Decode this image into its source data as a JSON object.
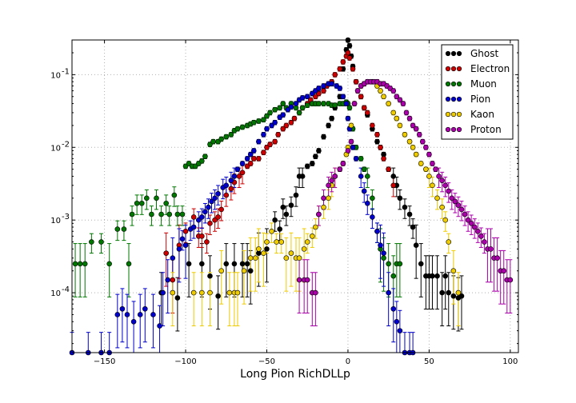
{
  "chart_data": {
    "type": "scatter",
    "title": "",
    "xlabel": "Long Pion RichDLLp",
    "ylabel": "",
    "xlim": [
      -170,
      105
    ],
    "ylim": [
      1.5e-05,
      0.3
    ],
    "yscale": "log",
    "grid": true,
    "legend_position": "top-right",
    "x_ticks": [
      -150,
      -100,
      -50,
      0,
      50,
      100
    ],
    "x_tick_labels": [
      "−150",
      "−100",
      "−50",
      "0",
      "50",
      "100"
    ],
    "y_ticks": [
      0.0001,
      0.001,
      0.01,
      0.1
    ],
    "y_tick_mantissa": [
      "10",
      "10",
      "10",
      "10"
    ],
    "y_tick_exponents": [
      "-4",
      "-3",
      "-2",
      "-1"
    ],
    "series": [
      {
        "name": "Ghost",
        "color": "#000000",
        "x": [
          -115,
          -105,
          -98,
          -90,
          -85,
          -80,
          -75,
          -70,
          -65,
          -62,
          -60,
          -55,
          -50,
          -45,
          -42,
          -40,
          -38,
          -35,
          -32,
          -30,
          -28,
          -25,
          -22,
          -20,
          -18,
          -15,
          -12,
          -10,
          -8,
          -5,
          -3,
          -1,
          0,
          1,
          2,
          3,
          5,
          8,
          10,
          12,
          15,
          18,
          20,
          22,
          25,
          28,
          30,
          32,
          35,
          38,
          40,
          42,
          45,
          48,
          50,
          52,
          55,
          58,
          60,
          62,
          65,
          68,
          70
        ],
        "y": [
          0.0001,
          8.5e-05,
          0.00025,
          0.00025,
          0.00017,
          9e-05,
          0.00025,
          0.00025,
          0.00025,
          0.00025,
          0.0002,
          0.00035,
          0.0004,
          0.001,
          0.00075,
          0.0015,
          0.0012,
          0.0016,
          0.0022,
          0.004,
          0.004,
          0.0055,
          0.006,
          0.0075,
          0.009,
          0.014,
          0.02,
          0.025,
          0.035,
          0.05,
          0.12,
          0.22,
          0.3,
          0.25,
          0.18,
          0.13,
          0.08,
          0.05,
          0.035,
          0.028,
          0.018,
          0.012,
          0.01,
          0.008,
          0.005,
          0.004,
          0.003,
          0.002,
          0.0015,
          0.0012,
          0.0008,
          0.00045,
          0.00025,
          0.00017,
          0.00017,
          0.00017,
          0.00017,
          0.0001,
          0.00017,
          0.0001,
          9e-05,
          8.5e-05,
          9e-05
        ]
      },
      {
        "name": "Electron",
        "color": "#cc0000",
        "x": [
          -112,
          -108,
          -104,
          -100,
          -95,
          -92,
          -90,
          -87,
          -85,
          -82,
          -80,
          -78,
          -75,
          -72,
          -70,
          -67,
          -65,
          -62,
          -60,
          -58,
          -55,
          -52,
          -50,
          -48,
          -45,
          -43,
          -40,
          -38,
          -35,
          -33,
          -30,
          -28,
          -25,
          -23,
          -20,
          -18,
          -15,
          -13,
          -10,
          -8,
          -5,
          -3,
          -1,
          0,
          1,
          3,
          5,
          8,
          10,
          12,
          15,
          18,
          20,
          22,
          25,
          28
        ],
        "y": [
          0.00035,
          0.00015,
          0.00045,
          0.0007,
          0.0011,
          0.0006,
          0.0006,
          0.0005,
          0.0009,
          0.001,
          0.0011,
          0.0014,
          0.0022,
          0.0027,
          0.0033,
          0.004,
          0.0045,
          0.0055,
          0.006,
          0.007,
          0.007,
          0.0085,
          0.01,
          0.011,
          0.012,
          0.015,
          0.018,
          0.02,
          0.022,
          0.025,
          0.03,
          0.035,
          0.04,
          0.045,
          0.05,
          0.055,
          0.06,
          0.07,
          0.08,
          0.1,
          0.12,
          0.15,
          0.18,
          0.2,
          0.17,
          0.12,
          0.08,
          0.05,
          0.035,
          0.03,
          0.02,
          0.015,
          0.01,
          0.007,
          0.005,
          0.003
        ]
      },
      {
        "name": "Muon",
        "color": "#007700",
        "x": [
          -168,
          -165,
          -162,
          -158,
          -152,
          -147,
          -142,
          -138,
          -135,
          -133,
          -130,
          -127,
          -124,
          -121,
          -118,
          -115,
          -112,
          -110,
          -107,
          -105,
          -102,
          -100,
          -98,
          -96,
          -94,
          -92,
          -90,
          -88,
          -85,
          -83,
          -80,
          -78,
          -75,
          -72,
          -70,
          -68,
          -65,
          -62,
          -60,
          -58,
          -55,
          -52,
          -50,
          -48,
          -45,
          -42,
          -40,
          -38,
          -35,
          -32,
          -30,
          -28,
          -25,
          -22,
          -20,
          -18,
          -15,
          -12,
          -10,
          -8,
          -5,
          -3,
          -1,
          0,
          1,
          3,
          5,
          8,
          10,
          12,
          15,
          18,
          20,
          22,
          25,
          28,
          30,
          32
        ],
        "y": [
          0.00025,
          0.00025,
          0.00025,
          0.0005,
          0.0005,
          0.00025,
          0.00075,
          0.00075,
          0.00025,
          0.0012,
          0.0017,
          0.0017,
          0.002,
          0.0012,
          0.002,
          0.0012,
          0.0017,
          0.0012,
          0.0022,
          0.0012,
          0.0012,
          0.0055,
          0.006,
          0.0055,
          0.0055,
          0.006,
          0.0065,
          0.0075,
          0.011,
          0.012,
          0.012,
          0.013,
          0.014,
          0.015,
          0.017,
          0.018,
          0.019,
          0.02,
          0.021,
          0.022,
          0.023,
          0.024,
          0.027,
          0.03,
          0.033,
          0.035,
          0.04,
          0.035,
          0.04,
          0.035,
          0.03,
          0.035,
          0.038,
          0.04,
          0.04,
          0.04,
          0.04,
          0.04,
          0.038,
          0.038,
          0.04,
          0.04,
          0.042,
          0.04,
          0.035,
          0.018,
          0.01,
          0.007,
          0.005,
          0.004,
          0.002,
          0.0007,
          0.0004,
          0.0003,
          0.00025,
          0.00017,
          0.00025,
          0.00025
        ]
      },
      {
        "name": "Pion",
        "color": "#0000cc",
        "x": [
          -170,
          -160,
          -152,
          -147,
          -142,
          -139,
          -136,
          -132,
          -128,
          -125,
          -120,
          -116,
          -114,
          -111,
          -108,
          -104,
          -102,
          -100,
          -97,
          -95,
          -92,
          -90,
          -88,
          -86,
          -84,
          -82,
          -80,
          -77,
          -75,
          -72,
          -70,
          -68,
          -65,
          -62,
          -60,
          -58,
          -55,
          -52,
          -50,
          -47,
          -45,
          -42,
          -40,
          -37,
          -35,
          -32,
          -30,
          -28,
          -25,
          -22,
          -20,
          -18,
          -15,
          -12,
          -10,
          -7,
          -5,
          -3,
          -1,
          0,
          1,
          3,
          5,
          8,
          10,
          12,
          15,
          18,
          20,
          22,
          25,
          28,
          30,
          32,
          35,
          38,
          40
        ],
        "y": [
          1.5e-05,
          1.5e-05,
          1.5e-05,
          1.5e-05,
          5e-05,
          6e-05,
          5e-05,
          4e-05,
          5e-05,
          6e-05,
          5e-05,
          3.5e-05,
          0.0001,
          0.00015,
          0.0003,
          0.0004,
          0.00055,
          0.00045,
          0.00075,
          0.0008,
          0.001,
          0.0011,
          0.0013,
          0.0015,
          0.0018,
          0.002,
          0.0023,
          0.0028,
          0.003,
          0.0035,
          0.004,
          0.005,
          0.006,
          0.007,
          0.008,
          0.009,
          0.012,
          0.015,
          0.018,
          0.02,
          0.022,
          0.026,
          0.028,
          0.033,
          0.036,
          0.04,
          0.045,
          0.048,
          0.05,
          0.055,
          0.06,
          0.065,
          0.07,
          0.075,
          0.075,
          0.07,
          0.065,
          0.05,
          0.04,
          0.025,
          0.018,
          0.01,
          0.007,
          0.004,
          0.0025,
          0.0017,
          0.0011,
          0.0007,
          0.00045,
          0.00035,
          0.0001,
          6e-05,
          4e-05,
          3e-05,
          1.5e-05,
          1.5e-05,
          1.5e-05
        ]
      },
      {
        "name": "Kaon",
        "color": "#eecc00",
        "x": [
          -108,
          -95,
          -90,
          -85,
          -78,
          -73,
          -70,
          -68,
          -64,
          -60,
          -57,
          -55,
          -52,
          -50,
          -47,
          -44,
          -41,
          -38,
          -35,
          -32,
          -30,
          -27,
          -25,
          -22,
          -20,
          -18,
          -15,
          -12,
          -10,
          -8,
          -5,
          -3,
          -1,
          0,
          2,
          4,
          6,
          8,
          10,
          12,
          15,
          18,
          20,
          22,
          25,
          28,
          30,
          32,
          35,
          38,
          40,
          42,
          45,
          48,
          50,
          52,
          55,
          58,
          60,
          62,
          65,
          68
        ],
        "y": [
          0.0001,
          0.0001,
          0.0001,
          0.0001,
          0.0002,
          0.0001,
          0.0001,
          0.0001,
          0.0002,
          0.0003,
          0.0003,
          0.0004,
          0.00035,
          0.0005,
          0.0007,
          0.0005,
          0.0005,
          0.0003,
          0.00035,
          0.0003,
          0.0003,
          0.0004,
          0.0005,
          0.0006,
          0.0008,
          0.0012,
          0.0015,
          0.002,
          0.003,
          0.004,
          0.005,
          0.006,
          0.008,
          0.01,
          0.02,
          0.04,
          0.06,
          0.07,
          0.075,
          0.08,
          0.08,
          0.07,
          0.06,
          0.05,
          0.04,
          0.03,
          0.025,
          0.02,
          0.015,
          0.012,
          0.01,
          0.008,
          0.006,
          0.005,
          0.004,
          0.003,
          0.002,
          0.0015,
          0.001,
          0.0005,
          0.0002,
          0.0001
        ]
      },
      {
        "name": "Proton",
        "color": "#aa00aa",
        "x": [
          -30,
          -27,
          -25,
          -22,
          -20,
          -18,
          -15,
          -12,
          -10,
          -8,
          -5,
          -3,
          0,
          2,
          4,
          6,
          8,
          10,
          12,
          14,
          16,
          18,
          20,
          22,
          24,
          26,
          28,
          30,
          32,
          34,
          36,
          38,
          40,
          42,
          44,
          46,
          48,
          50,
          52,
          54,
          56,
          58,
          60,
          62,
          64,
          66,
          68,
          70,
          72,
          74,
          76,
          78,
          80,
          82,
          84,
          86,
          88,
          90,
          92,
          94,
          96,
          98,
          100
        ],
        "y": [
          0.00015,
          0.00015,
          0.00015,
          0.0001,
          0.0001,
          0.0012,
          0.002,
          0.003,
          0.0035,
          0.004,
          0.005,
          0.006,
          0.009,
          0.012,
          0.04,
          0.06,
          0.07,
          0.075,
          0.08,
          0.08,
          0.08,
          0.08,
          0.075,
          0.075,
          0.07,
          0.065,
          0.06,
          0.05,
          0.045,
          0.04,
          0.03,
          0.025,
          0.02,
          0.018,
          0.015,
          0.012,
          0.01,
          0.008,
          0.006,
          0.005,
          0.004,
          0.0035,
          0.003,
          0.0025,
          0.002,
          0.0018,
          0.0016,
          0.0014,
          0.0012,
          0.001,
          0.0009,
          0.0008,
          0.0007,
          0.0006,
          0.0005,
          0.0004,
          0.0004,
          0.0003,
          0.0003,
          0.0002,
          0.0002,
          0.00015,
          0.00015
        ]
      }
    ]
  }
}
